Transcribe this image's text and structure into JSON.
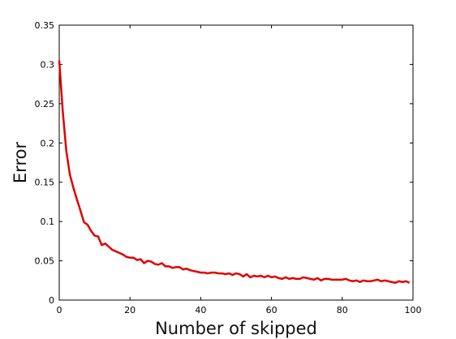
{
  "chart_data": {
    "type": "line",
    "title": "",
    "xlabel": "Number of skipped",
    "ylabel": "Error",
    "xlim": [
      0,
      100
    ],
    "ylim": [
      0,
      0.35
    ],
    "xticks": [
      0,
      20,
      40,
      60,
      80,
      100
    ],
    "xtick_labels": [
      "0",
      "20",
      "40",
      "60",
      "80",
      "100"
    ],
    "yticks": [
      0,
      0.05,
      0.1,
      0.15,
      0.2,
      0.25,
      0.3,
      0.35
    ],
    "ytick_labels": [
      "0",
      "0.05",
      "0.1",
      "0.15",
      "0.2",
      "0.25",
      "0.3",
      "0.35"
    ],
    "grid": false,
    "legend": "none",
    "series": [
      {
        "color": "#e00000",
        "x": [
          0,
          1,
          2,
          3,
          4,
          5,
          6,
          7,
          8,
          9,
          10,
          11,
          12,
          13,
          14,
          15,
          16,
          17,
          18,
          19,
          20,
          21,
          22,
          23,
          24,
          25,
          26,
          27,
          28,
          29,
          30,
          31,
          32,
          33,
          34,
          35,
          36,
          37,
          38,
          39,
          40,
          41,
          42,
          43,
          44,
          45,
          46,
          47,
          48,
          49,
          50,
          51,
          52,
          53,
          54,
          55,
          56,
          57,
          58,
          59,
          60,
          61,
          62,
          63,
          64,
          65,
          66,
          67,
          68,
          69,
          70,
          71,
          72,
          73,
          74,
          75,
          76,
          77,
          78,
          79,
          80,
          81,
          82,
          83,
          84,
          85,
          86,
          87,
          88,
          89,
          90,
          91,
          92,
          93,
          94,
          95,
          96,
          97,
          98,
          99
        ],
        "y": [
          0.305,
          0.24,
          0.19,
          0.16,
          0.143,
          0.128,
          0.114,
          0.099,
          0.096,
          0.088,
          0.082,
          0.081,
          0.07,
          0.072,
          0.068,
          0.064,
          0.062,
          0.06,
          0.058,
          0.055,
          0.054,
          0.054,
          0.051,
          0.052,
          0.047,
          0.05,
          0.049,
          0.046,
          0.045,
          0.047,
          0.043,
          0.043,
          0.041,
          0.042,
          0.042,
          0.039,
          0.04,
          0.038,
          0.037,
          0.036,
          0.035,
          0.035,
          0.034,
          0.035,
          0.035,
          0.034,
          0.034,
          0.033,
          0.034,
          0.032,
          0.034,
          0.033,
          0.03,
          0.033,
          0.029,
          0.031,
          0.03,
          0.031,
          0.029,
          0.031,
          0.029,
          0.03,
          0.028,
          0.027,
          0.029,
          0.027,
          0.028,
          0.027,
          0.027,
          0.029,
          0.028,
          0.027,
          0.026,
          0.028,
          0.025,
          0.027,
          0.027,
          0.026,
          0.026,
          0.026,
          0.026,
          0.027,
          0.025,
          0.024,
          0.025,
          0.023,
          0.025,
          0.024,
          0.024,
          0.025,
          0.026,
          0.024,
          0.025,
          0.024,
          0.023,
          0.022,
          0.024,
          0.023,
          0.024,
          0.022
        ]
      }
    ]
  }
}
